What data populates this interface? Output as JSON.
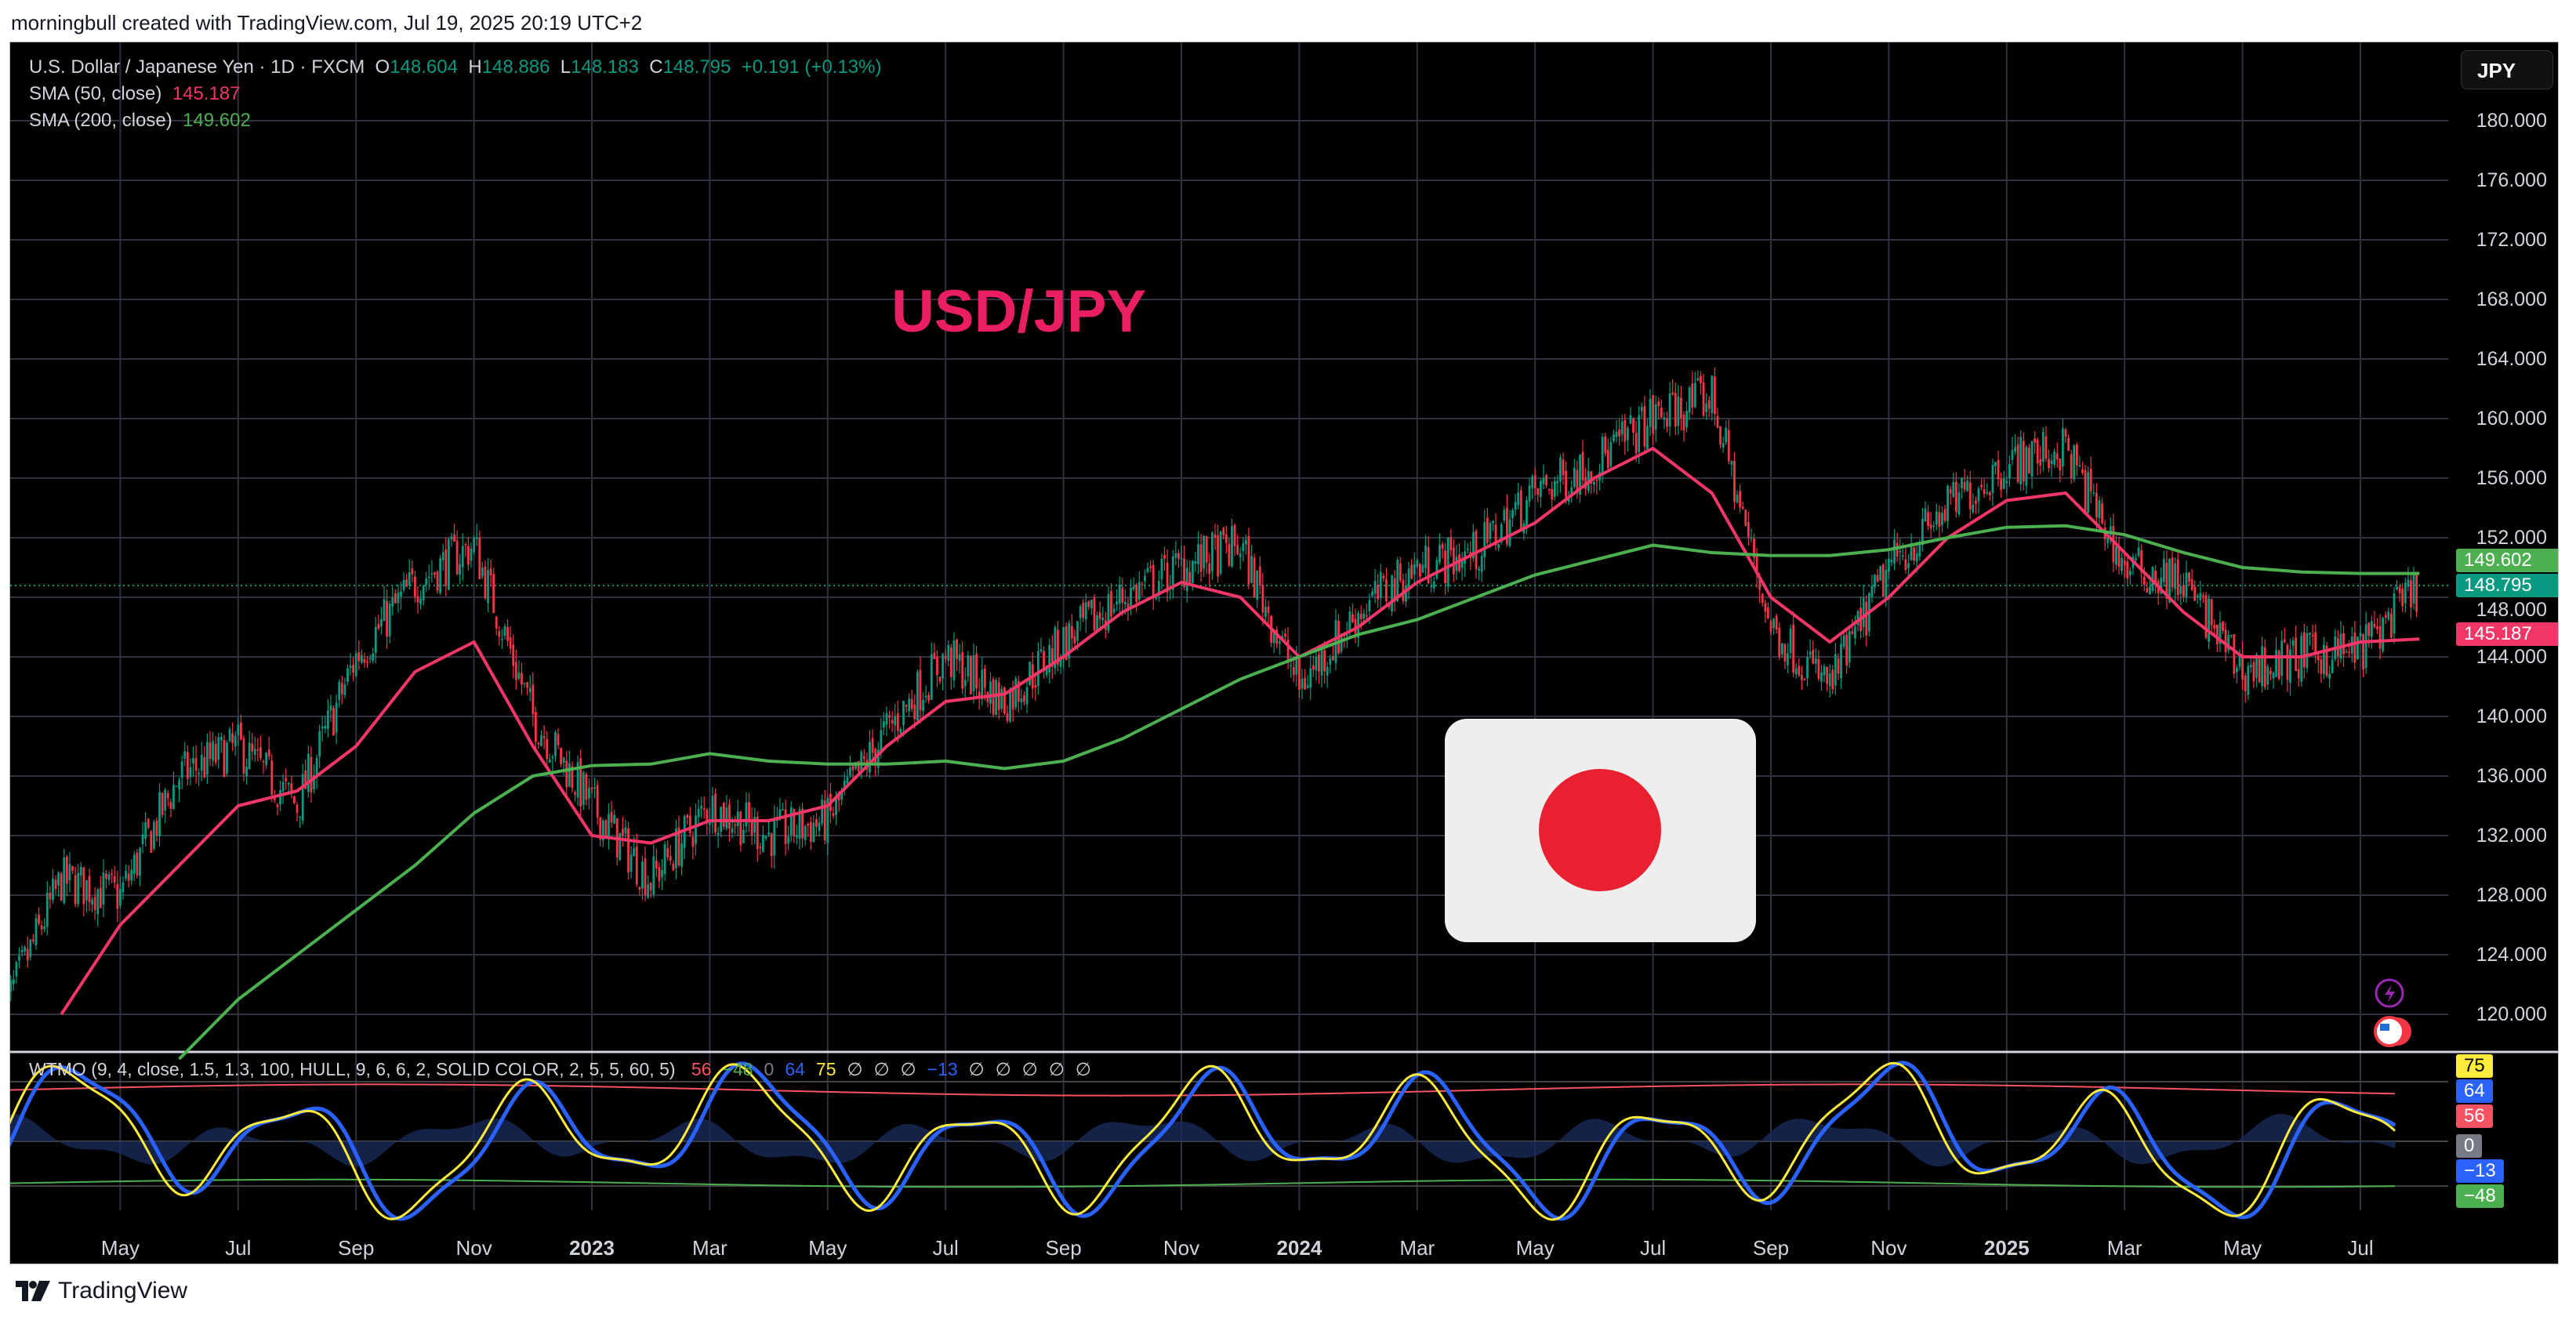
{
  "header": {
    "caption": "morningbull created with TradingView.com, Jul 19, 2025 20:19 UTC+2"
  },
  "legend": {
    "symbol": "U.S. Dollar / Japanese Yen · 1D · FXCM",
    "o_label": "O",
    "o": "148.604",
    "h_label": "H",
    "h": "148.886",
    "l_label": "L",
    "l": "148.183",
    "c_label": "C",
    "c": "148.795",
    "change": "+0.191 (+0.13%)",
    "sma50_label": "SMA (50, close)",
    "sma50": "145.187",
    "sma200_label": "SMA (200, close)",
    "sma200": "149.602"
  },
  "currency_button": "JPY",
  "annotation_title": "USD/JPY",
  "price_tags": {
    "sma200": "149.602",
    "last": "148.795",
    "sma50": "145.187"
  },
  "oscillator": {
    "legend": "WTMO (9, 4, close, 1.5, 1.3, 100, HULL, 9, 6, 6, 2, SOLID COLOR, 2, 5, 5, 60, 5)",
    "values": [
      {
        "t": "56",
        "c": "#f7525f"
      },
      {
        "t": "−48",
        "c": "#4caf50"
      },
      {
        "t": "0",
        "c": "#787b86"
      },
      {
        "t": "64",
        "c": "#2962ff"
      },
      {
        "t": "75",
        "c": "#ffeb3b"
      },
      {
        "t": "∅",
        "c": "#d1d4dc"
      },
      {
        "t": "∅",
        "c": "#d1d4dc"
      },
      {
        "t": "∅",
        "c": "#d1d4dc"
      },
      {
        "t": "−13",
        "c": "#2962ff"
      },
      {
        "t": "∅",
        "c": "#d1d4dc"
      },
      {
        "t": "∅",
        "c": "#d1d4dc"
      },
      {
        "t": "∅",
        "c": "#d1d4dc"
      },
      {
        "t": "∅",
        "c": "#d1d4dc"
      },
      {
        "t": "∅",
        "c": "#d1d4dc"
      }
    ],
    "tags": [
      {
        "t": "75",
        "v": 75,
        "bg": "#ffeb3b",
        "fg": "#000"
      },
      {
        "t": "64",
        "v": 64,
        "bg": "#2962ff",
        "fg": "#fff"
      },
      {
        "t": "56",
        "v": 56,
        "bg": "#f7525f",
        "fg": "#fff"
      },
      {
        "t": "0",
        "v": 0,
        "bg": "#787b86",
        "fg": "#fff"
      },
      {
        "t": "−13",
        "v": -13,
        "bg": "#2962ff",
        "fg": "#fff"
      },
      {
        "t": "−48",
        "v": -48,
        "bg": "#4caf50",
        "fg": "#fff"
      }
    ]
  },
  "footer": {
    "brand": "TradingView"
  },
  "chart_data": {
    "type": "candlestick",
    "title": "USD/JPY",
    "ylim": [
      118,
      182
    ],
    "y_ticks": [
      "180.000",
      "176.000",
      "172.000",
      "168.000",
      "164.000",
      "160.000",
      "156.000",
      "152.000",
      "148.000",
      "144.000",
      "140.000",
      "136.000",
      "132.000",
      "128.000",
      "124.000",
      "120.000"
    ],
    "x_ticks": [
      {
        "m": 2,
        "t": "May"
      },
      {
        "m": 4,
        "t": "Jul"
      },
      {
        "m": 6,
        "t": "Sep"
      },
      {
        "m": 8,
        "t": "Nov"
      },
      {
        "m": 10,
        "t": "2023",
        "bold": true
      },
      {
        "m": 12,
        "t": "Mar"
      },
      {
        "m": 14,
        "t": "May"
      },
      {
        "m": 16,
        "t": "Jul"
      },
      {
        "m": 18,
        "t": "Sep"
      },
      {
        "m": 20,
        "t": "Nov"
      },
      {
        "m": 22,
        "t": "2024",
        "bold": true
      },
      {
        "m": 24,
        "t": "Mar"
      },
      {
        "m": 26,
        "t": "May"
      },
      {
        "m": 28,
        "t": "Jul"
      },
      {
        "m": 30,
        "t": "Sep"
      },
      {
        "m": 32,
        "t": "Nov"
      },
      {
        "m": 34,
        "t": "2025",
        "bold": true
      },
      {
        "m": 36,
        "t": "Mar"
      },
      {
        "m": 38,
        "t": "May"
      },
      {
        "m": 40,
        "t": "Jul"
      }
    ],
    "price_path_monthly": [
      120,
      129,
      128,
      136,
      138,
      134,
      144,
      149,
      151.5,
      140,
      134,
      129,
      134,
      132,
      133,
      139,
      144,
      141,
      145,
      148,
      150,
      151.5,
      142,
      147,
      150,
      151,
      155,
      157,
      160,
      161.5,
      146,
      142,
      150,
      154,
      157,
      158,
      150,
      149,
      143,
      144,
      144.5,
      148.8
    ],
    "sma50_monthly": [
      null,
      120,
      126,
      130,
      134,
      135,
      138,
      143,
      145,
      138,
      132,
      131.5,
      133,
      133,
      134,
      138,
      141,
      141.5,
      144,
      147,
      149,
      148,
      144,
      146,
      149,
      151,
      153,
      156,
      158,
      155,
      148,
      145,
      148,
      152,
      154.5,
      155,
      151,
      147,
      144,
      144,
      145,
      145.2
    ],
    "sma200_monthly": [
      null,
      null,
      null,
      117,
      121,
      124,
      127,
      130,
      133.5,
      136,
      136.7,
      136.8,
      137.5,
      137,
      136.8,
      136.8,
      137,
      136.5,
      137,
      138.5,
      140.5,
      142.5,
      144,
      145.5,
      146.5,
      148,
      149.5,
      150.5,
      151.5,
      151,
      150.8,
      150.8,
      151.2,
      152,
      152.7,
      152.8,
      152.2,
      151,
      150,
      149.7,
      149.6,
      149.6
    ],
    "colors": {
      "up": "#089981",
      "down": "#f23645",
      "sma50": "#f23668",
      "sma200": "#4caf50"
    }
  }
}
